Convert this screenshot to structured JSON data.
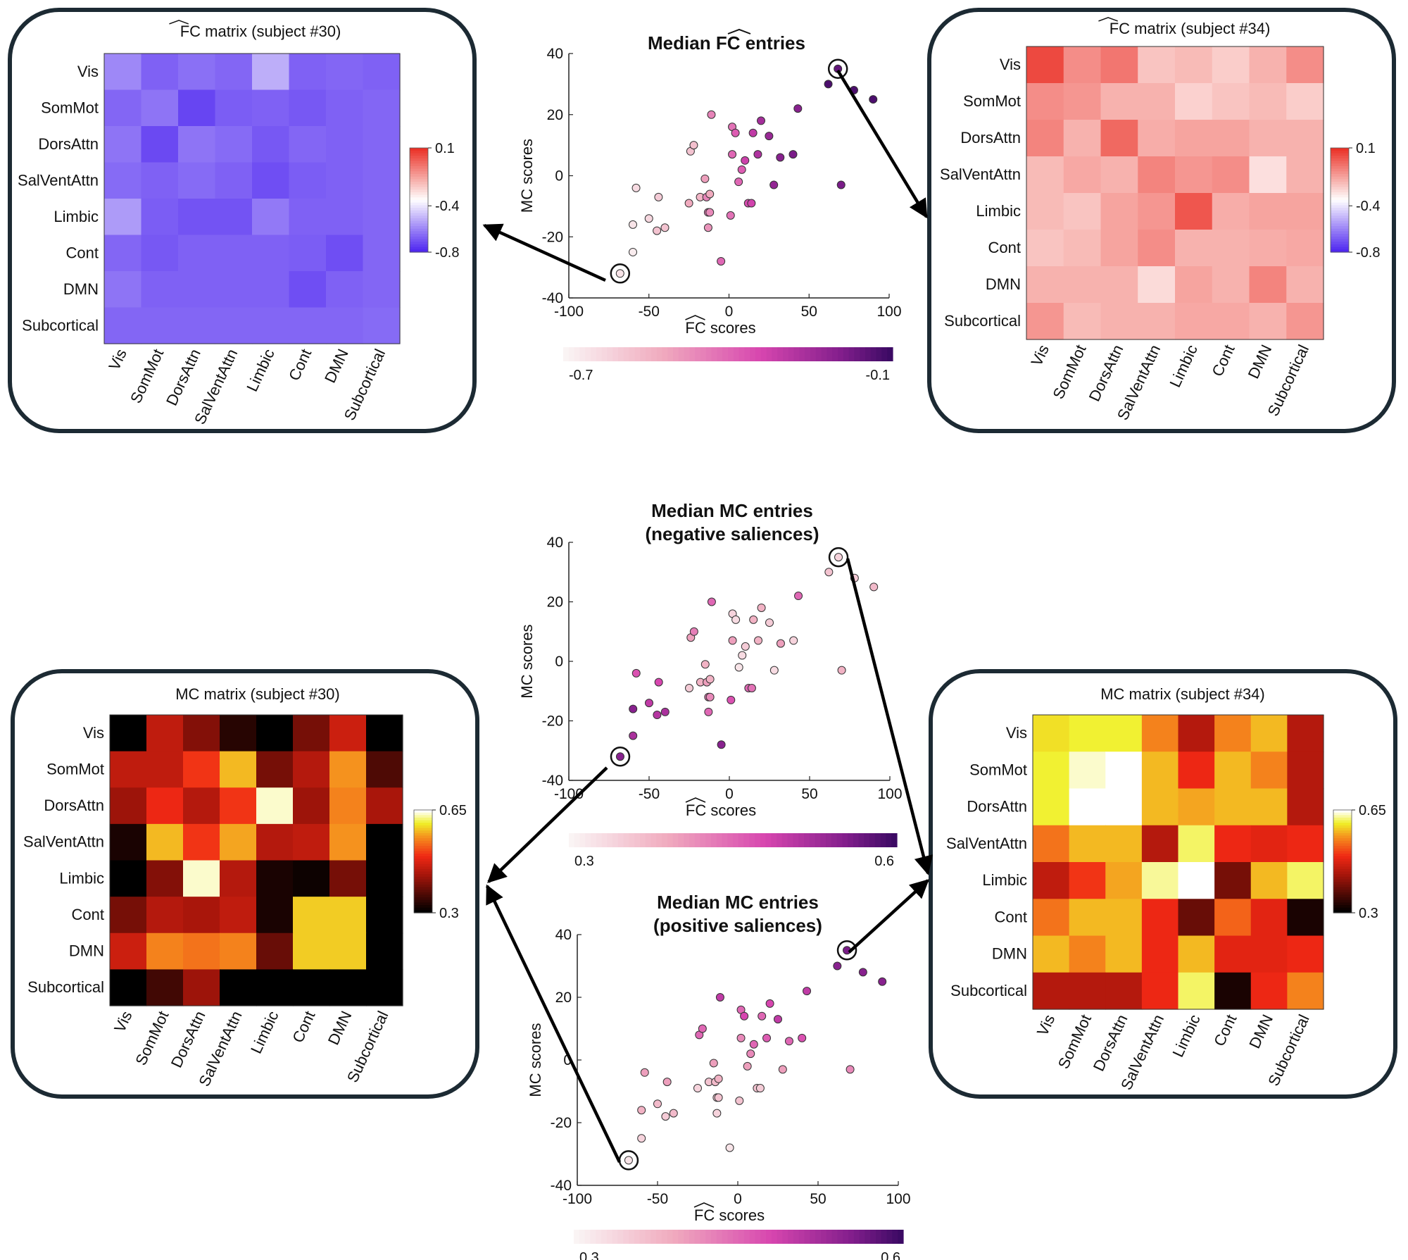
{
  "chart_data": [
    {
      "id": "fc30",
      "type": "heatmap",
      "title": "FC matrix (subject #30)",
      "hat_word": "FC",
      "title_rest": " matrix (subject #30)",
      "rows": [
        "Vis",
        "SomMot",
        "DorsAttn",
        "SalVentAttn",
        "Limbic",
        "Cont",
        "DMN",
        "Subcortical"
      ],
      "cols": [
        "Vis",
        "SomMot",
        "DorsAttn",
        "SalVentAttn",
        "Limbic",
        "Cont",
        "DMN",
        "Subcortical"
      ],
      "colormap": "bwr",
      "vmin": -0.8,
      "vmax": 0.1,
      "colorbar_ticks": [
        "0.1",
        "-0.4",
        "-0.8"
      ],
      "values": [
        [
          -0.6,
          -0.68,
          -0.65,
          -0.67,
          -0.52,
          -0.68,
          -0.67,
          -0.68
        ],
        [
          -0.67,
          -0.64,
          -0.74,
          -0.69,
          -0.68,
          -0.7,
          -0.68,
          -0.67
        ],
        [
          -0.64,
          -0.73,
          -0.64,
          -0.66,
          -0.7,
          -0.67,
          -0.68,
          -0.67
        ],
        [
          -0.66,
          -0.68,
          -0.66,
          -0.68,
          -0.72,
          -0.69,
          -0.68,
          -0.67
        ],
        [
          -0.56,
          -0.69,
          -0.71,
          -0.71,
          -0.63,
          -0.68,
          -0.68,
          -0.67
        ],
        [
          -0.67,
          -0.7,
          -0.68,
          -0.68,
          -0.68,
          -0.69,
          -0.72,
          -0.67
        ],
        [
          -0.64,
          -0.68,
          -0.68,
          -0.68,
          -0.68,
          -0.72,
          -0.68,
          -0.67
        ],
        [
          -0.67,
          -0.67,
          -0.67,
          -0.67,
          -0.67,
          -0.67,
          -0.67,
          -0.66
        ]
      ]
    },
    {
      "id": "fc34",
      "type": "heatmap",
      "title": "FC matrix (subject #34)",
      "hat_word": "FC",
      "title_rest": " matrix (subject #34)",
      "rows": [
        "Vis",
        "SomMot",
        "DorsAttn",
        "SalVentAttn",
        "Limbic",
        "Cont",
        "DMN",
        "Subcortical"
      ],
      "cols": [
        "Vis",
        "SomMot",
        "DorsAttn",
        "SalVentAttn",
        "Limbic",
        "Cont",
        "DMN",
        "Subcortical"
      ],
      "colormap": "bwr",
      "vmin": -0.8,
      "vmax": 0.1,
      "colorbar_ticks": [
        "0.1",
        "-0.4",
        "-0.8"
      ],
      "values": [
        [
          0.05,
          -0.1,
          -0.05,
          -0.22,
          -0.2,
          -0.24,
          -0.18,
          -0.1
        ],
        [
          -0.1,
          -0.12,
          -0.18,
          -0.18,
          -0.25,
          -0.22,
          -0.2,
          -0.24
        ],
        [
          -0.08,
          -0.18,
          -0.02,
          -0.17,
          -0.15,
          -0.15,
          -0.18,
          -0.18
        ],
        [
          -0.2,
          -0.16,
          -0.18,
          -0.08,
          -0.12,
          -0.1,
          -0.28,
          -0.18
        ],
        [
          -0.2,
          -0.22,
          -0.15,
          -0.12,
          0.02,
          -0.17,
          -0.15,
          -0.15
        ],
        [
          -0.22,
          -0.2,
          -0.15,
          -0.1,
          -0.18,
          -0.18,
          -0.17,
          -0.16
        ],
        [
          -0.18,
          -0.18,
          -0.18,
          -0.27,
          -0.15,
          -0.18,
          -0.08,
          -0.18
        ],
        [
          -0.12,
          -0.2,
          -0.18,
          -0.18,
          -0.16,
          -0.16,
          -0.18,
          -0.12
        ]
      ]
    },
    {
      "id": "mc30",
      "type": "heatmap",
      "title": "MC matrix (subject #30)",
      "rows": [
        "Vis",
        "SomMot",
        "DorsAttn",
        "SalVentAttn",
        "Limbic",
        "Cont",
        "DMN",
        "Subcortical"
      ],
      "cols": [
        "Vis",
        "SomMot",
        "DorsAttn",
        "SalVentAttn",
        "Limbic",
        "Cont",
        "DMN",
        "Subcortical"
      ],
      "colormap": "hot",
      "vmin": 0.3,
      "vmax": 0.65,
      "colorbar_ticks": [
        "0.65",
        "0.3"
      ],
      "values": [
        [
          0.3,
          0.45,
          0.4,
          0.33,
          0.3,
          0.39,
          0.46,
          0.3
        ],
        [
          0.45,
          0.45,
          0.5,
          0.58,
          0.39,
          0.44,
          0.56,
          0.36
        ],
        [
          0.42,
          0.49,
          0.44,
          0.5,
          0.64,
          0.42,
          0.55,
          0.43
        ],
        [
          0.32,
          0.58,
          0.5,
          0.57,
          0.44,
          0.45,
          0.56,
          0.3
        ],
        [
          0.3,
          0.4,
          0.64,
          0.44,
          0.32,
          0.31,
          0.39,
          0.3
        ],
        [
          0.39,
          0.44,
          0.43,
          0.45,
          0.32,
          0.59,
          0.59,
          0.3
        ],
        [
          0.46,
          0.55,
          0.54,
          0.55,
          0.38,
          0.59,
          0.59,
          0.3
        ],
        [
          0.3,
          0.35,
          0.42,
          0.3,
          0.3,
          0.3,
          0.3,
          0.3
        ]
      ]
    },
    {
      "id": "mc34",
      "type": "heatmap",
      "title": "MC matrix (subject #34)",
      "rows": [
        "Vis",
        "SomMot",
        "DorsAttn",
        "SalVentAttn",
        "Limbic",
        "Cont",
        "DMN",
        "Subcortical"
      ],
      "cols": [
        "Vis",
        "SomMot",
        "DorsAttn",
        "SalVentAttn",
        "Limbic",
        "Cont",
        "DMN",
        "Subcortical"
      ],
      "colormap": "hot",
      "vmin": 0.3,
      "vmax": 0.65,
      "colorbar_ticks": [
        "0.65",
        "0.3"
      ],
      "values": [
        [
          0.6,
          0.61,
          0.61,
          0.55,
          0.44,
          0.55,
          0.58,
          0.44
        ],
        [
          0.61,
          0.64,
          0.65,
          0.58,
          0.49,
          0.58,
          0.55,
          0.44
        ],
        [
          0.61,
          0.65,
          0.65,
          0.58,
          0.57,
          0.58,
          0.58,
          0.44
        ],
        [
          0.54,
          0.58,
          0.58,
          0.44,
          0.62,
          0.49,
          0.48,
          0.49
        ],
        [
          0.45,
          0.5,
          0.57,
          0.63,
          0.65,
          0.39,
          0.58,
          0.62
        ],
        [
          0.54,
          0.58,
          0.58,
          0.49,
          0.38,
          0.53,
          0.48,
          0.32
        ],
        [
          0.58,
          0.55,
          0.58,
          0.49,
          0.58,
          0.48,
          0.48,
          0.49
        ],
        [
          0.44,
          0.44,
          0.44,
          0.49,
          0.62,
          0.32,
          0.49,
          0.55
        ]
      ]
    },
    {
      "id": "scatter_fc",
      "type": "scatter",
      "title_pre": "Median ",
      "hat_word": "FC",
      "title_post": " entries",
      "xlabel": "FC scores",
      "ylabel": "MC scores",
      "xlim": [
        -100,
        100
      ],
      "ylim": [
        -40,
        40
      ],
      "xticks": [
        -100,
        -50,
        0,
        50,
        100
      ],
      "yticks": [
        40,
        20,
        0,
        -20,
        -40
      ],
      "colorbar_range": [
        -0.7,
        -0.1
      ],
      "colorbar_labels": [
        "-0.7",
        "-0.1"
      ],
      "highlight": [
        [
          -68,
          -32
        ],
        [
          68,
          35
        ]
      ],
      "points": [
        [
          -68,
          -32,
          -0.66
        ],
        [
          -60,
          -25,
          -0.68
        ],
        [
          -60,
          -16,
          -0.66
        ],
        [
          -58,
          -4,
          -0.64
        ],
        [
          -50,
          -14,
          -0.63
        ],
        [
          -45,
          -18,
          -0.58
        ],
        [
          -44,
          -7,
          -0.6
        ],
        [
          -40,
          -17,
          -0.58
        ],
        [
          -25,
          -9,
          -0.52
        ],
        [
          -24,
          8,
          -0.58
        ],
        [
          -22,
          10,
          -0.57
        ],
        [
          -18,
          -7,
          -0.55
        ],
        [
          -15,
          -1,
          -0.5
        ],
        [
          -14,
          -7,
          -0.45
        ],
        [
          -13,
          -12,
          -0.44
        ],
        [
          -13,
          -17,
          -0.48
        ],
        [
          -12,
          -12,
          -0.46
        ],
        [
          -12,
          -6,
          -0.52
        ],
        [
          -11,
          20,
          -0.45
        ],
        [
          -5,
          -28,
          -0.4
        ],
        [
          1,
          -13,
          -0.42
        ],
        [
          2,
          7,
          -0.4
        ],
        [
          2,
          16,
          -0.42
        ],
        [
          4,
          14,
          -0.38
        ],
        [
          6,
          -2,
          -0.4
        ],
        [
          8,
          2,
          -0.38
        ],
        [
          10,
          5,
          -0.32
        ],
        [
          12,
          -9,
          -0.35
        ],
        [
          14,
          -9,
          -0.33
        ],
        [
          15,
          14,
          -0.3
        ],
        [
          18,
          7,
          -0.27
        ],
        [
          20,
          18,
          -0.25
        ],
        [
          25,
          13,
          -0.23
        ],
        [
          28,
          -3,
          -0.22
        ],
        [
          32,
          6,
          -0.2
        ],
        [
          40,
          7,
          -0.18
        ],
        [
          43,
          22,
          -0.2
        ],
        [
          62,
          30,
          -0.12
        ],
        [
          68,
          35,
          -0.15
        ],
        [
          70,
          -3,
          -0.18
        ],
        [
          78,
          28,
          -0.12
        ],
        [
          90,
          25,
          -0.12
        ]
      ]
    },
    {
      "id": "scatter_mc_neg",
      "type": "scatter",
      "title_line1": "Median MC entries",
      "title_line2": "(negative saliences)",
      "xlabel": "FC scores",
      "ylabel": "MC scores",
      "xlim": [
        -100,
        100
      ],
      "ylim": [
        -40,
        40
      ],
      "xticks": [
        -100,
        -50,
        0,
        50,
        100
      ],
      "yticks": [
        40,
        20,
        0,
        -20,
        -40
      ],
      "colorbar_range": [
        0.3,
        0.6
      ],
      "colorbar_labels": [
        "0.3",
        "0.6"
      ],
      "highlight": [
        [
          -68,
          -32
        ],
        [
          68,
          35
        ]
      ],
      "points": [
        [
          -68,
          -32,
          0.55
        ],
        [
          -60,
          -25,
          0.52
        ],
        [
          -60,
          -16,
          0.55
        ],
        [
          -58,
          -4,
          0.47
        ],
        [
          -50,
          -14,
          0.5
        ],
        [
          -45,
          -18,
          0.51
        ],
        [
          -44,
          -7,
          0.48
        ],
        [
          -40,
          -17,
          0.52
        ],
        [
          -25,
          -9,
          0.35
        ],
        [
          -24,
          8,
          0.4
        ],
        [
          -22,
          10,
          0.43
        ],
        [
          -18,
          -7,
          0.38
        ],
        [
          -15,
          -1,
          0.38
        ],
        [
          -14,
          -7,
          0.4
        ],
        [
          -13,
          -12,
          0.43
        ],
        [
          -13,
          -17,
          0.45
        ],
        [
          -12,
          -12,
          0.42
        ],
        [
          -12,
          -6,
          0.38
        ],
        [
          -11,
          20,
          0.45
        ],
        [
          -5,
          -28,
          0.55
        ],
        [
          1,
          -13,
          0.47
        ],
        [
          2,
          7,
          0.4
        ],
        [
          2,
          16,
          0.34
        ],
        [
          4,
          14,
          0.33
        ],
        [
          6,
          -2,
          0.32
        ],
        [
          8,
          2,
          0.33
        ],
        [
          10,
          5,
          0.35
        ],
        [
          12,
          -9,
          0.45
        ],
        [
          14,
          -9,
          0.44
        ],
        [
          15,
          14,
          0.38
        ],
        [
          18,
          7,
          0.38
        ],
        [
          20,
          18,
          0.38
        ],
        [
          25,
          13,
          0.35
        ],
        [
          28,
          -3,
          0.33
        ],
        [
          32,
          6,
          0.4
        ],
        [
          40,
          7,
          0.34
        ],
        [
          43,
          22,
          0.45
        ],
        [
          62,
          30,
          0.36
        ],
        [
          68,
          35,
          0.34
        ],
        [
          70,
          -3,
          0.38
        ],
        [
          78,
          28,
          0.35
        ],
        [
          90,
          25,
          0.37
        ]
      ]
    },
    {
      "id": "scatter_mc_pos",
      "type": "scatter",
      "title_line1": "Median MC entries",
      "title_line2": "(positive saliences)",
      "xlabel": "FC scores",
      "ylabel": "MC scores",
      "xlim": [
        -100,
        100
      ],
      "ylim": [
        -40,
        40
      ],
      "xticks": [
        -100,
        -50,
        0,
        50,
        100
      ],
      "yticks": [
        40,
        20,
        0,
        -20,
        -40
      ],
      "colorbar_range": [
        0.3,
        0.6
      ],
      "colorbar_labels": [
        "0.3",
        "0.6"
      ],
      "highlight": [
        [
          -68,
          -32
        ],
        [
          68,
          35
        ]
      ],
      "points": [
        [
          -68,
          -32,
          0.32
        ],
        [
          -60,
          -25,
          0.34
        ],
        [
          -60,
          -16,
          0.38
        ],
        [
          -58,
          -4,
          0.4
        ],
        [
          -50,
          -14,
          0.37
        ],
        [
          -45,
          -18,
          0.35
        ],
        [
          -44,
          -7,
          0.4
        ],
        [
          -40,
          -17,
          0.37
        ],
        [
          -25,
          -9,
          0.34
        ],
        [
          -24,
          8,
          0.45
        ],
        [
          -22,
          10,
          0.45
        ],
        [
          -18,
          -7,
          0.36
        ],
        [
          -15,
          -1,
          0.4
        ],
        [
          -14,
          -7,
          0.37
        ],
        [
          -13,
          -12,
          0.35
        ],
        [
          -13,
          -17,
          0.34
        ],
        [
          -12,
          -12,
          0.36
        ],
        [
          -12,
          -6,
          0.38
        ],
        [
          -11,
          20,
          0.5
        ],
        [
          -5,
          -28,
          0.32
        ],
        [
          1,
          -13,
          0.36
        ],
        [
          2,
          7,
          0.42
        ],
        [
          2,
          16,
          0.45
        ],
        [
          4,
          14,
          0.48
        ],
        [
          6,
          -2,
          0.4
        ],
        [
          8,
          2,
          0.42
        ],
        [
          10,
          5,
          0.45
        ],
        [
          12,
          -9,
          0.36
        ],
        [
          14,
          -9,
          0.35
        ],
        [
          15,
          14,
          0.45
        ],
        [
          18,
          7,
          0.46
        ],
        [
          20,
          18,
          0.48
        ],
        [
          25,
          13,
          0.5
        ],
        [
          28,
          -3,
          0.4
        ],
        [
          32,
          6,
          0.45
        ],
        [
          40,
          7,
          0.47
        ],
        [
          43,
          22,
          0.5
        ],
        [
          62,
          30,
          0.55
        ],
        [
          68,
          35,
          0.56
        ],
        [
          70,
          -3,
          0.42
        ],
        [
          78,
          28,
          0.55
        ],
        [
          90,
          25,
          0.55
        ]
      ]
    }
  ]
}
